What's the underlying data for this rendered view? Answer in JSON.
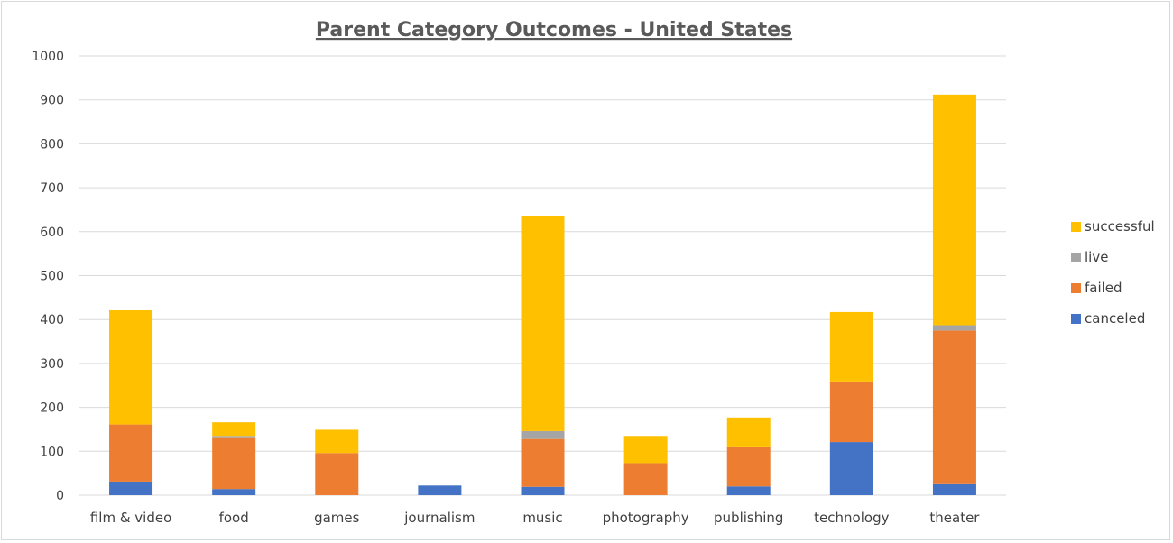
{
  "chart_data": {
    "type": "bar",
    "stacked": true,
    "title": "Parent Category Outcomes - United States",
    "xlabel": "",
    "ylabel": "",
    "ylim": [
      0,
      1000
    ],
    "yticks": [
      "0",
      "100",
      "200",
      "300",
      "400",
      "500",
      "600",
      "700",
      "800",
      "900",
      "1000"
    ],
    "grid": true,
    "legend_position": "right",
    "categories": [
      "film & video",
      "food",
      "games",
      "journalism",
      "music",
      "photography",
      "publishing",
      "technology",
      "theater"
    ],
    "series": [
      {
        "name": "canceled",
        "color": "#4472C4",
        "values": [
          31,
          14,
          0,
          22,
          19,
          0,
          20,
          121,
          25
        ]
      },
      {
        "name": "failed",
        "color": "#ED7D31",
        "values": [
          130,
          116,
          96,
          0,
          109,
          73,
          89,
          138,
          350
        ]
      },
      {
        "name": "live",
        "color": "#A5A5A5",
        "values": [
          0,
          5,
          0,
          0,
          18,
          0,
          0,
          0,
          12
        ]
      },
      {
        "name": "successful",
        "color": "#FFC000",
        "values": [
          260,
          31,
          53,
          0,
          490,
          62,
          68,
          158,
          525
        ]
      }
    ],
    "legend_order": [
      "successful",
      "live",
      "failed",
      "canceled"
    ]
  }
}
